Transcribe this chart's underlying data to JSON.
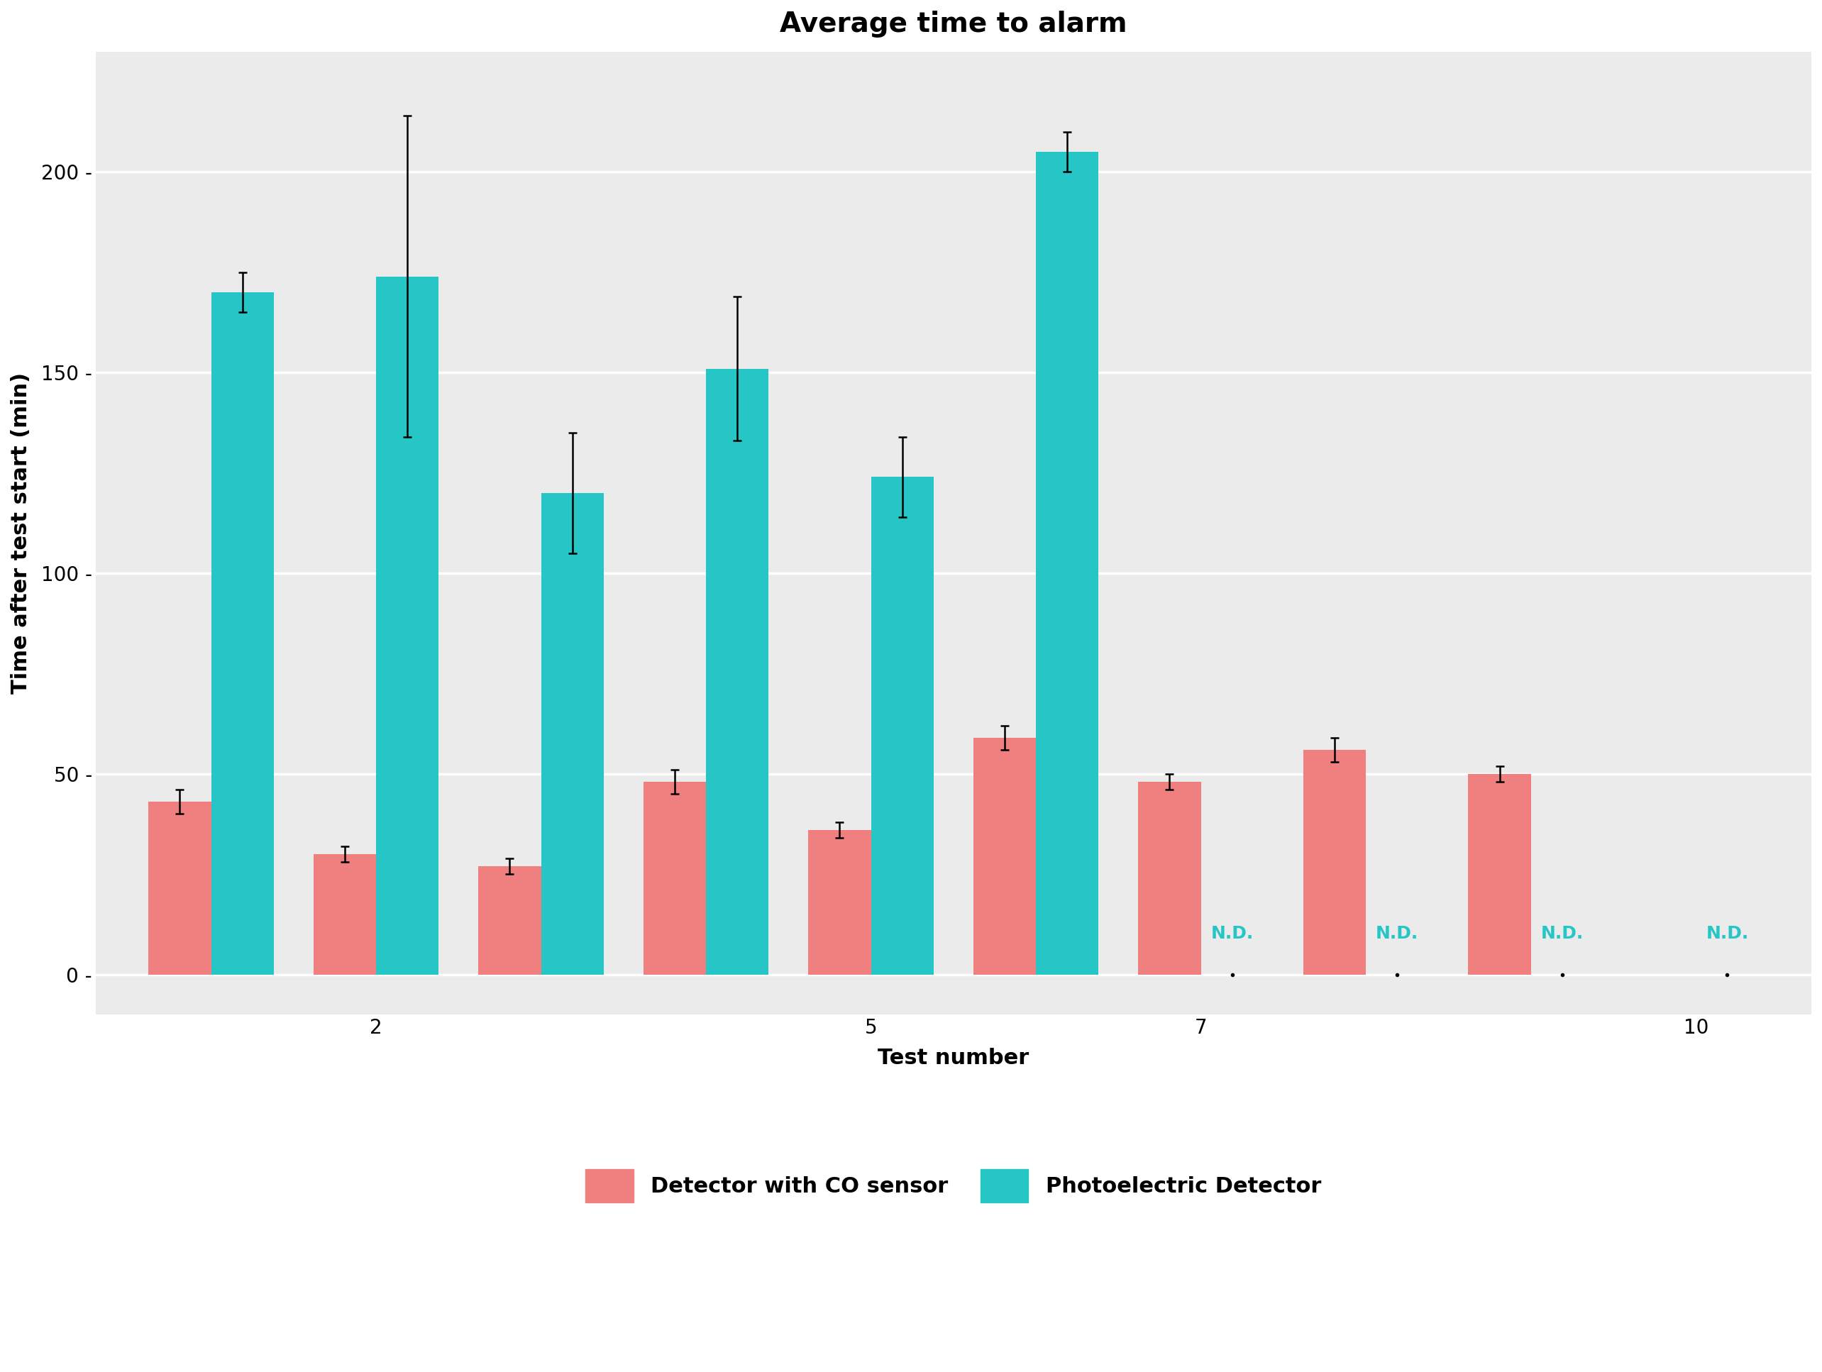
{
  "title": "Average time to alarm",
  "xlabel": "Test number",
  "ylabel": "Time after test start (min)",
  "background_color": "#EBEBEB",
  "grid_color": "#FFFFFF",
  "bar_color_co": "#F08080",
  "bar_color_photo": "#26C6C6",
  "nd_color": "#26C6C6",
  "x_tick_labels": [
    "2",
    "5",
    "7",
    "10"
  ],
  "x_tick_positions": [
    2,
    5,
    7,
    10
  ],
  "co_values": [
    43,
    30,
    27,
    48,
    36,
    59,
    48,
    56,
    50,
    null
  ],
  "photo_values": [
    170,
    174,
    120,
    151,
    124,
    205,
    null,
    null,
    null,
    null
  ],
  "co_errors": [
    3,
    2,
    2,
    3,
    2,
    3,
    2,
    3,
    2,
    null
  ],
  "photo_errors": [
    5,
    40,
    15,
    18,
    10,
    5,
    null,
    null,
    null,
    null
  ],
  "ylim": [
    -10,
    230
  ],
  "yticks": [
    0,
    50,
    100,
    150,
    200
  ],
  "bar_width": 0.38,
  "legend_co": "Detector with CO sensor",
  "legend_photo": "Photoelectric Detector",
  "title_fontsize": 28,
  "label_fontsize": 22,
  "tick_fontsize": 20,
  "legend_fontsize": 22,
  "nd_fontsize": 18
}
